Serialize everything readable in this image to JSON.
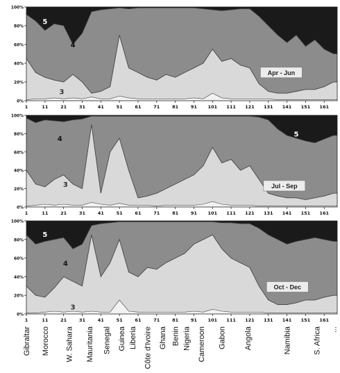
{
  "chart_data": [
    {
      "type": "area",
      "annotation": "Apr - Jun",
      "stacked": true,
      "y_unit": "%",
      "ylim": [
        0,
        100
      ],
      "yticks": [
        "0%",
        "20%",
        "40%",
        "60%",
        "80%",
        "100%"
      ],
      "x_range": [
        1,
        168
      ],
      "xticks": [
        "1",
        "11",
        "21",
        "31",
        "41",
        "51",
        "61",
        "71",
        "81",
        "91",
        "101",
        "111",
        "121",
        "131",
        "141",
        "151",
        "161"
      ],
      "area_labels": [
        "5",
        "4",
        "3"
      ],
      "boundaries": {
        "x": [
          1,
          6,
          11,
          16,
          21,
          26,
          31,
          36,
          41,
          46,
          51,
          56,
          61,
          66,
          71,
          76,
          81,
          86,
          91,
          96,
          101,
          106,
          111,
          116,
          121,
          126,
          131,
          136,
          141,
          146,
          151,
          156,
          161,
          166
        ],
        "class2": [
          1,
          2,
          2,
          3,
          2,
          3,
          2,
          4,
          2,
          2,
          5,
          3,
          2,
          2,
          2,
          2,
          2,
          2,
          3,
          2,
          8,
          3,
          2,
          2,
          2,
          2,
          2,
          1,
          1,
          1,
          1,
          1,
          1,
          1
        ],
        "class3": [
          45,
          30,
          25,
          22,
          20,
          28,
          20,
          8,
          10,
          15,
          70,
          35,
          30,
          25,
          22,
          28,
          25,
          30,
          35,
          40,
          55,
          42,
          45,
          38,
          35,
          18,
          10,
          8,
          8,
          10,
          12,
          12,
          15,
          20
        ],
        "class4": [
          92,
          85,
          75,
          82,
          80,
          60,
          72,
          95,
          97,
          98,
          99,
          98,
          99,
          99,
          99,
          99,
          99,
          99,
          99,
          98,
          97,
          96,
          97,
          98,
          98,
          90,
          80,
          70,
          62,
          70,
          58,
          65,
          55,
          50
        ]
      }
    },
    {
      "type": "area",
      "annotation": "Jul - Sep",
      "stacked": true,
      "y_unit": "%",
      "ylim": [
        0,
        100
      ],
      "yticks": [
        "0%",
        "20%",
        "40%",
        "60%",
        "80%",
        "100%"
      ],
      "x_range": [
        1,
        168
      ],
      "xticks": [
        "1",
        "11",
        "21",
        "31",
        "41",
        "51",
        "61",
        "71",
        "81",
        "91",
        "101",
        "111",
        "121",
        "131",
        "141",
        "151",
        "161"
      ],
      "area_labels": [
        "5",
        "4",
        "3"
      ],
      "boundaries": {
        "x": [
          1,
          6,
          11,
          16,
          21,
          26,
          31,
          36,
          41,
          46,
          51,
          56,
          61,
          66,
          71,
          76,
          81,
          86,
          91,
          96,
          101,
          106,
          111,
          116,
          121,
          126,
          131,
          136,
          141,
          146,
          151,
          156,
          161,
          166
        ],
        "class2": [
          1,
          2,
          3,
          2,
          3,
          2,
          2,
          5,
          3,
          2,
          4,
          2,
          2,
          2,
          1,
          2,
          2,
          2,
          2,
          3,
          6,
          3,
          2,
          2,
          2,
          1,
          1,
          1,
          1,
          1,
          1,
          1,
          1,
          1
        ],
        "class3": [
          40,
          25,
          22,
          30,
          35,
          25,
          20,
          90,
          15,
          60,
          75,
          40,
          10,
          12,
          15,
          20,
          25,
          30,
          35,
          45,
          65,
          48,
          52,
          40,
          45,
          30,
          15,
          12,
          10,
          10,
          8,
          10,
          12,
          15
        ],
        "class4": [
          97,
          92,
          95,
          94,
          93,
          95,
          96,
          99,
          99,
          99,
          99,
          99,
          99,
          99,
          99,
          99,
          99,
          99,
          99,
          99,
          99,
          99,
          99,
          99,
          99,
          98,
          95,
          85,
          78,
          75,
          72,
          70,
          74,
          78
        ]
      }
    },
    {
      "type": "area",
      "annotation": "Oct - Dec",
      "stacked": true,
      "y_unit": "%",
      "ylim": [
        0,
        100
      ],
      "yticks": [
        "0%",
        "20%",
        "40%",
        "60%",
        "80%",
        "100%"
      ],
      "x_range": [
        1,
        168
      ],
      "xticks": [
        "1",
        "11",
        "21",
        "31",
        "41",
        "51",
        "61",
        "71",
        "81",
        "91",
        "101",
        "111",
        "121",
        "131",
        "141",
        "151",
        "161"
      ],
      "area_labels": [
        "5",
        "4",
        "3"
      ],
      "boundaries": {
        "x": [
          1,
          6,
          11,
          16,
          21,
          26,
          31,
          36,
          41,
          46,
          51,
          56,
          61,
          66,
          71,
          76,
          81,
          86,
          91,
          96,
          101,
          106,
          111,
          116,
          121,
          126,
          131,
          136,
          141,
          146,
          151,
          156,
          161,
          166
        ],
        "class2": [
          1,
          1,
          2,
          3,
          2,
          3,
          2,
          3,
          2,
          2,
          15,
          3,
          2,
          2,
          2,
          2,
          2,
          2,
          3,
          2,
          5,
          3,
          2,
          2,
          2,
          2,
          1,
          1,
          1,
          1,
          1,
          1,
          1,
          1
        ],
        "class3": [
          30,
          20,
          18,
          28,
          40,
          35,
          30,
          85,
          40,
          55,
          80,
          45,
          40,
          50,
          48,
          55,
          60,
          65,
          75,
          80,
          85,
          70,
          60,
          55,
          50,
          30,
          15,
          10,
          10,
          12,
          15,
          15,
          18,
          20
        ],
        "class4": [
          85,
          75,
          78,
          80,
          82,
          70,
          75,
          95,
          97,
          98,
          99,
          99,
          99,
          99,
          99,
          99,
          99,
          99,
          99,
          99,
          99,
          98,
          98,
          97,
          97,
          92,
          85,
          80,
          75,
          78,
          80,
          82,
          80,
          78
        ]
      }
    }
  ],
  "countries": [
    {
      "name": "Gibraltar",
      "x": 1
    },
    {
      "name": "Morocco",
      "x": 11
    },
    {
      "name": "W. Sahara",
      "x": 24
    },
    {
      "name": "Mauritania",
      "x": 35
    },
    {
      "name": "Senegal",
      "x": 44
    },
    {
      "name": "Guinea",
      "x": 52
    },
    {
      "name": "Liberia",
      "x": 58
    },
    {
      "name": "Côte d'Ivoire",
      "x": 66
    },
    {
      "name": "Ghana",
      "x": 74
    },
    {
      "name": "Benin",
      "x": 81
    },
    {
      "name": "Nigeria",
      "x": 87
    },
    {
      "name": "Cameroon",
      "x": 95
    },
    {
      "name": "Gabon",
      "x": 106
    },
    {
      "name": "Angola",
      "x": 120
    },
    {
      "name": "Namibia",
      "x": 141
    },
    {
      "name": "S. Africa",
      "x": 157
    },
    {
      "name": "...",
      "x": 166
    }
  ],
  "colors": {
    "class5": "#1a1a1a",
    "class4": "#8c8c8c",
    "class3": "#d9d9d9",
    "class2": "#f2f2f2",
    "line": "#444444"
  }
}
